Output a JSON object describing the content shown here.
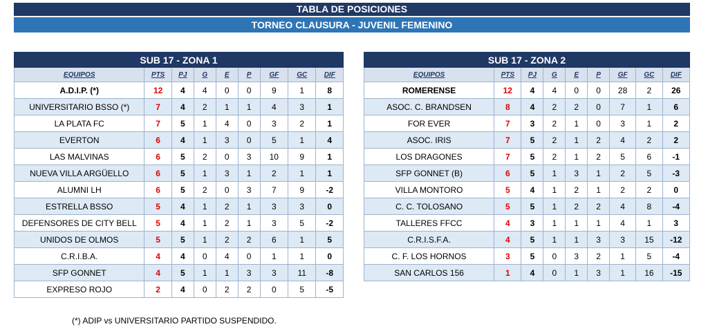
{
  "title": "TABLA DE POSICIONES",
  "subtitle": "TORNEO CLAUSURA -  JUVENIL FEMENINO",
  "headers": [
    "EQUIPOS",
    "PTS",
    "PJ",
    "G",
    "E",
    "P",
    "GF",
    "GC",
    "DIF"
  ],
  "zones": [
    {
      "title": "SUB 17 - ZONA 1",
      "rows": [
        {
          "team": "A.D.I.P. (*)",
          "pts": "12",
          "pj": "4",
          "g": "4",
          "e": "0",
          "p": "0",
          "gf": "9",
          "gc": "1",
          "dif": "8",
          "bold": true
        },
        {
          "team": "UNIVERSITARIO BSSO (*)",
          "pts": "7",
          "pj": "4",
          "g": "2",
          "e": "1",
          "p": "1",
          "gf": "4",
          "gc": "3",
          "dif": "1"
        },
        {
          "team": "LA PLATA FC",
          "pts": "7",
          "pj": "5",
          "g": "1",
          "e": "4",
          "p": "0",
          "gf": "3",
          "gc": "2",
          "dif": "1"
        },
        {
          "team": "EVERTON",
          "pts": "6",
          "pj": "4",
          "g": "1",
          "e": "3",
          "p": "0",
          "gf": "5",
          "gc": "1",
          "dif": "4"
        },
        {
          "team": "LAS MALVINAS",
          "pts": "6",
          "pj": "5",
          "g": "2",
          "e": "0",
          "p": "3",
          "gf": "10",
          "gc": "9",
          "dif": "1"
        },
        {
          "team": "NUEVA VILLA ARGÜELLO",
          "pts": "6",
          "pj": "5",
          "g": "1",
          "e": "3",
          "p": "1",
          "gf": "2",
          "gc": "1",
          "dif": "1"
        },
        {
          "team": "ALUMNI LH",
          "pts": "6",
          "pj": "5",
          "g": "2",
          "e": "0",
          "p": "3",
          "gf": "7",
          "gc": "9",
          "dif": "-2"
        },
        {
          "team": "ESTRELLA BSSO",
          "pts": "5",
          "pj": "4",
          "g": "1",
          "e": "2",
          "p": "1",
          "gf": "3",
          "gc": "3",
          "dif": "0"
        },
        {
          "team": "DEFENSORES DE CITY BELL",
          "pts": "5",
          "pj": "4",
          "g": "1",
          "e": "2",
          "p": "1",
          "gf": "3",
          "gc": "5",
          "dif": "-2"
        },
        {
          "team": "UNIDOS DE OLMOS",
          "pts": "5",
          "pj": "5",
          "g": "1",
          "e": "2",
          "p": "2",
          "gf": "6",
          "gc": "1",
          "dif": "5"
        },
        {
          "team": "C.R.I.B.A.",
          "pts": "4",
          "pj": "4",
          "g": "0",
          "e": "4",
          "p": "0",
          "gf": "1",
          "gc": "1",
          "dif": "0"
        },
        {
          "team": "SFP GONNET",
          "pts": "4",
          "pj": "5",
          "g": "1",
          "e": "1",
          "p": "3",
          "gf": "3",
          "gc": "11",
          "dif": "-8"
        },
        {
          "team": "EXPRESO ROJO",
          "pts": "2",
          "pj": "4",
          "g": "0",
          "e": "2",
          "p": "2",
          "gf": "0",
          "gc": "5",
          "dif": "-5"
        }
      ]
    },
    {
      "title": "SUB 17 - ZONA 2",
      "rows": [
        {
          "team": "ROMERENSE",
          "pts": "12",
          "pj": "4",
          "g": "4",
          "e": "0",
          "p": "0",
          "gf": "28",
          "gc": "2",
          "dif": "26",
          "bold": true
        },
        {
          "team": "ASOC. C. BRANDSEN",
          "pts": "8",
          "pj": "4",
          "g": "2",
          "e": "2",
          "p": "0",
          "gf": "7",
          "gc": "1",
          "dif": "6"
        },
        {
          "team": "FOR EVER",
          "pts": "7",
          "pj": "3",
          "g": "2",
          "e": "1",
          "p": "0",
          "gf": "3",
          "gc": "1",
          "dif": "2"
        },
        {
          "team": "ASOC. IRIS",
          "pts": "7",
          "pj": "5",
          "g": "2",
          "e": "1",
          "p": "2",
          "gf": "4",
          "gc": "2",
          "dif": "2"
        },
        {
          "team": "LOS DRAGONES",
          "pts": "7",
          "pj": "5",
          "g": "2",
          "e": "1",
          "p": "2",
          "gf": "5",
          "gc": "6",
          "dif": "-1"
        },
        {
          "team": "SFP GONNET (B)",
          "pts": "6",
          "pj": "5",
          "g": "1",
          "e": "3",
          "p": "1",
          "gf": "2",
          "gc": "5",
          "dif": "-3"
        },
        {
          "team": "VILLA MONTORO",
          "pts": "5",
          "pj": "4",
          "g": "1",
          "e": "2",
          "p": "1",
          "gf": "2",
          "gc": "2",
          "dif": "0"
        },
        {
          "team": "C. C. TOLOSANO",
          "pts": "5",
          "pj": "5",
          "g": "1",
          "e": "2",
          "p": "2",
          "gf": "4",
          "gc": "8",
          "dif": "-4"
        },
        {
          "team": "TALLERES FFCC",
          "pts": "4",
          "pj": "3",
          "g": "1",
          "e": "1",
          "p": "1",
          "gf": "4",
          "gc": "1",
          "dif": "3"
        },
        {
          "team": "C.R.I.S.F.A.",
          "pts": "4",
          "pj": "5",
          "g": "1",
          "e": "1",
          "p": "3",
          "gf": "3",
          "gc": "15",
          "dif": "-12"
        },
        {
          "team": "C. F. LOS HORNOS",
          "pts": "3",
          "pj": "5",
          "g": "0",
          "e": "3",
          "p": "2",
          "gf": "1",
          "gc": "5",
          "dif": "-4"
        },
        {
          "team": "SAN CARLOS 156",
          "pts": "1",
          "pj": "4",
          "g": "0",
          "e": "1",
          "p": "3",
          "gf": "1",
          "gc": "16",
          "dif": "-15"
        }
      ]
    }
  ],
  "footnote": "(*) ADIP vs UNIVERSITARIO PARTIDO SUSPENDIDO."
}
